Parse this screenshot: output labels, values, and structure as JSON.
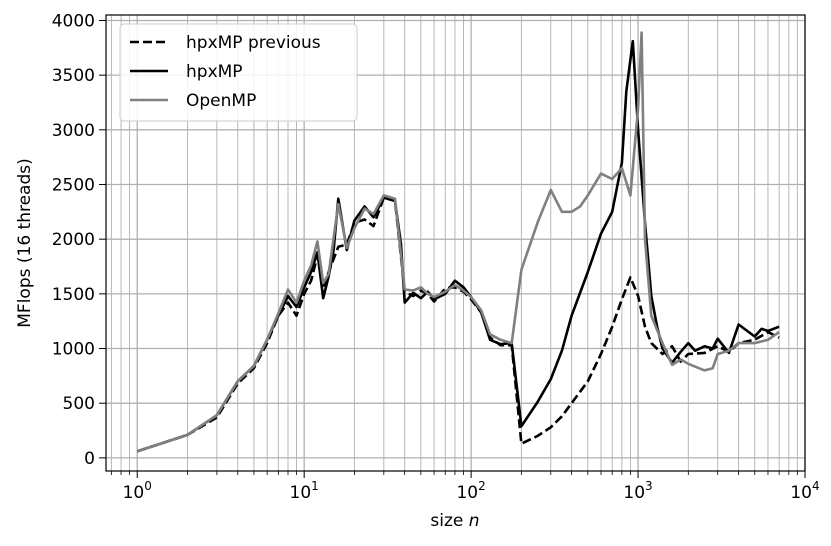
{
  "chart_data": {
    "type": "line",
    "xlabel": "size",
    "xlabel_var": "n",
    "ylabel": "MFlops (16 threads)",
    "xscale": "log",
    "xlim": [
      0.65,
      10000
    ],
    "ylim": [
      -120,
      4050
    ],
    "grid": true,
    "legend_position": "top-left",
    "x_ticks": [
      {
        "value": 1,
        "mantissa": "10",
        "exp": "0"
      },
      {
        "value": 10,
        "mantissa": "10",
        "exp": "1"
      },
      {
        "value": 100,
        "mantissa": "10",
        "exp": "2"
      },
      {
        "value": 1000,
        "mantissa": "10",
        "exp": "3"
      },
      {
        "value": 10000,
        "mantissa": "10",
        "exp": "4"
      }
    ],
    "y_ticks": [
      0,
      500,
      1000,
      1500,
      2000,
      2500,
      3000,
      3500,
      4000
    ],
    "series": [
      {
        "name": "hpxMP previous",
        "color": "#000000",
        "dash": "dashed",
        "points": [
          [
            1,
            60
          ],
          [
            2,
            210
          ],
          [
            3,
            370
          ],
          [
            4,
            680
          ],
          [
            5,
            820
          ],
          [
            6,
            1050
          ],
          [
            7,
            1300
          ],
          [
            8,
            1420
          ],
          [
            9,
            1300
          ],
          [
            10,
            1500
          ],
          [
            11,
            1620
          ],
          [
            12,
            1850
          ],
          [
            13,
            1550
          ],
          [
            14,
            1700
          ],
          [
            16,
            1930
          ],
          [
            18,
            1950
          ],
          [
            20,
            2150
          ],
          [
            23,
            2180
          ],
          [
            26,
            2120
          ],
          [
            30,
            2380
          ],
          [
            35,
            2350
          ],
          [
            40,
            1520
          ],
          [
            45,
            1480
          ],
          [
            50,
            1530
          ],
          [
            55,
            1500
          ],
          [
            60,
            1430
          ],
          [
            70,
            1550
          ],
          [
            80,
            1560
          ],
          [
            90,
            1520
          ],
          [
            100,
            1450
          ],
          [
            115,
            1330
          ],
          [
            130,
            1100
          ],
          [
            150,
            1030
          ],
          [
            175,
            1030
          ],
          [
            200,
            130
          ],
          [
            250,
            200
          ],
          [
            300,
            280
          ],
          [
            350,
            380
          ],
          [
            400,
            500
          ],
          [
            500,
            700
          ],
          [
            600,
            950
          ],
          [
            700,
            1200
          ],
          [
            800,
            1450
          ],
          [
            900,
            1650
          ],
          [
            1000,
            1480
          ],
          [
            1100,
            1200
          ],
          [
            1200,
            1050
          ],
          [
            1400,
            950
          ],
          [
            1600,
            1020
          ],
          [
            1800,
            880
          ],
          [
            2000,
            950
          ],
          [
            2500,
            960
          ],
          [
            3000,
            1020
          ],
          [
            3500,
            970
          ],
          [
            4000,
            1050
          ],
          [
            5000,
            1080
          ],
          [
            6000,
            1150
          ],
          [
            7000,
            1100
          ]
        ]
      },
      {
        "name": "hpxMP",
        "color": "#000000",
        "dash": "solid",
        "points": [
          [
            1,
            60
          ],
          [
            2,
            210
          ],
          [
            3,
            390
          ],
          [
            4,
            700
          ],
          [
            5,
            840
          ],
          [
            6,
            1080
          ],
          [
            7,
            1300
          ],
          [
            8,
            1480
          ],
          [
            9,
            1380
          ],
          [
            10,
            1560
          ],
          [
            11,
            1700
          ],
          [
            12,
            1880
          ],
          [
            13,
            1460
          ],
          [
            14,
            1660
          ],
          [
            15,
            1900
          ],
          [
            16,
            2370
          ],
          [
            18,
            1900
          ],
          [
            20,
            2170
          ],
          [
            23,
            2300
          ],
          [
            26,
            2200
          ],
          [
            30,
            2380
          ],
          [
            35,
            2350
          ],
          [
            38,
            1950
          ],
          [
            40,
            1420
          ],
          [
            45,
            1510
          ],
          [
            50,
            1460
          ],
          [
            55,
            1520
          ],
          [
            60,
            1450
          ],
          [
            70,
            1500
          ],
          [
            80,
            1620
          ],
          [
            90,
            1560
          ],
          [
            100,
            1470
          ],
          [
            115,
            1330
          ],
          [
            130,
            1080
          ],
          [
            150,
            1040
          ],
          [
            175,
            1050
          ],
          [
            200,
            290
          ],
          [
            250,
            510
          ],
          [
            300,
            720
          ],
          [
            350,
            980
          ],
          [
            400,
            1300
          ],
          [
            500,
            1700
          ],
          [
            600,
            2050
          ],
          [
            700,
            2250
          ],
          [
            800,
            2700
          ],
          [
            850,
            3350
          ],
          [
            930,
            3810
          ],
          [
            1000,
            3000
          ],
          [
            1100,
            2150
          ],
          [
            1200,
            1480
          ],
          [
            1300,
            1200
          ],
          [
            1400,
            1000
          ],
          [
            1600,
            870
          ],
          [
            1800,
            970
          ],
          [
            2000,
            1050
          ],
          [
            2200,
            980
          ],
          [
            2500,
            1020
          ],
          [
            2800,
            1000
          ],
          [
            3000,
            1090
          ],
          [
            3500,
            960
          ],
          [
            4000,
            1220
          ],
          [
            5000,
            1110
          ],
          [
            5500,
            1180
          ],
          [
            6000,
            1160
          ],
          [
            7000,
            1200
          ]
        ]
      },
      {
        "name": "OpenMP",
        "color": "#808080",
        "dash": "solid",
        "points": [
          [
            1,
            60
          ],
          [
            2,
            210
          ],
          [
            3,
            390
          ],
          [
            4,
            700
          ],
          [
            5,
            840
          ],
          [
            6,
            1080
          ],
          [
            7,
            1320
          ],
          [
            8,
            1540
          ],
          [
            9,
            1420
          ],
          [
            10,
            1620
          ],
          [
            11,
            1760
          ],
          [
            12,
            1980
          ],
          [
            13,
            1600
          ],
          [
            14,
            1680
          ],
          [
            16,
            2320
          ],
          [
            18,
            1920
          ],
          [
            20,
            2100
          ],
          [
            23,
            2280
          ],
          [
            26,
            2230
          ],
          [
            30,
            2400
          ],
          [
            35,
            2370
          ],
          [
            40,
            1540
          ],
          [
            45,
            1530
          ],
          [
            50,
            1560
          ],
          [
            55,
            1500
          ],
          [
            60,
            1470
          ],
          [
            70,
            1520
          ],
          [
            80,
            1580
          ],
          [
            90,
            1530
          ],
          [
            100,
            1470
          ],
          [
            115,
            1350
          ],
          [
            130,
            1130
          ],
          [
            150,
            1080
          ],
          [
            175,
            1050
          ],
          [
            200,
            1720
          ],
          [
            250,
            2150
          ],
          [
            300,
            2450
          ],
          [
            350,
            2250
          ],
          [
            400,
            2250
          ],
          [
            450,
            2300
          ],
          [
            500,
            2400
          ],
          [
            600,
            2600
          ],
          [
            700,
            2550
          ],
          [
            800,
            2650
          ],
          [
            900,
            2400
          ],
          [
            1000,
            3200
          ],
          [
            1050,
            3890
          ],
          [
            1100,
            2000
          ],
          [
            1200,
            1300
          ],
          [
            1400,
            1050
          ],
          [
            1600,
            850
          ],
          [
            1800,
            900
          ],
          [
            2000,
            860
          ],
          [
            2500,
            800
          ],
          [
            2800,
            820
          ],
          [
            3000,
            950
          ],
          [
            3500,
            980
          ],
          [
            4000,
            1050
          ],
          [
            5000,
            1050
          ],
          [
            6000,
            1080
          ],
          [
            7000,
            1150
          ]
        ]
      }
    ]
  }
}
